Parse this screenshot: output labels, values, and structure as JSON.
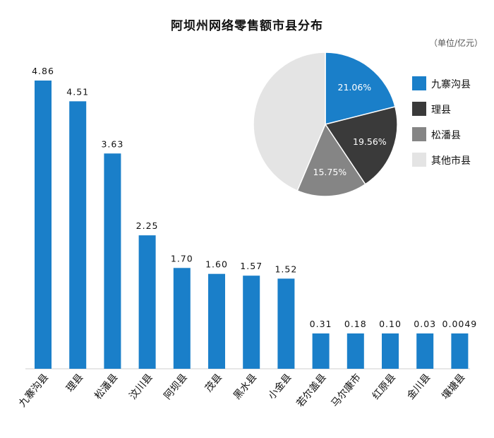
{
  "title": "阿坝州网络零售额市县分布",
  "unit": "（单位/亿元）",
  "colors": {
    "primary": "#1a7fc9",
    "dark": "#3a3a3a",
    "gray": "#858585",
    "light": "#e4e4e4"
  },
  "chart_data": [
    {
      "type": "bar",
      "categories": [
        "九寨沟县",
        "理县",
        "松潘县",
        "汶川县",
        "阿坝县",
        "茂县",
        "黑水县",
        "小金县",
        "若尔盖县",
        "马尔康市",
        "红原县",
        "金川县",
        "壤塘县"
      ],
      "values": [
        4.86,
        4.51,
        3.63,
        2.25,
        1.7,
        1.6,
        1.57,
        1.52,
        0.31,
        0.18,
        0.1,
        0.03,
        0.0049
      ],
      "labels": [
        "4.86",
        "4.51",
        "3.63",
        "2.25",
        "1.70",
        "1.60",
        "1.57",
        "1.52",
        "0.31",
        "0.18",
        "0.10",
        "0.03",
        "0.0049"
      ]
    },
    {
      "type": "pie",
      "slices": [
        {
          "name": "九寨沟县",
          "value": 21.06,
          "label": "21.06%"
        },
        {
          "name": "理县",
          "value": 19.56,
          "label": "19.56%"
        },
        {
          "name": "松潘县",
          "value": 15.75,
          "label": "15.75%"
        },
        {
          "name": "其他市县",
          "value": 43.63,
          "label": ""
        }
      ],
      "legend_position": "right"
    }
  ]
}
